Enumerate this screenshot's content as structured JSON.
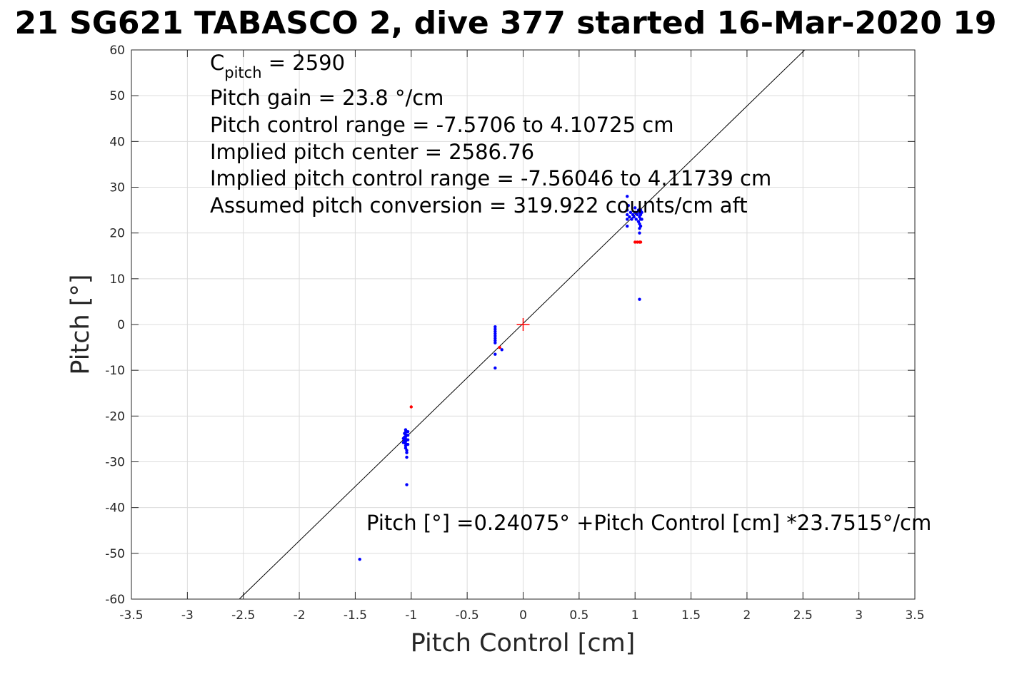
{
  "chart_data": {
    "type": "scatter",
    "title": "21 SG621 TABASCO 2, dive 377 started 16-Mar-2020 19",
    "xlabel": "Pitch Control [cm]",
    "ylabel": "Pitch [°]",
    "xlim": [
      -3.5,
      3.5
    ],
    "ylim": [
      -60,
      60
    ],
    "xticks": [
      "-3.5",
      "-3",
      "-2.5",
      "-2",
      "-1.5",
      "-1",
      "-0.5",
      "0",
      "0.5",
      "1",
      "1.5",
      "2",
      "2.5",
      "3",
      "3.5"
    ],
    "yticks": [
      "60",
      "50",
      "40",
      "30",
      "20",
      "10",
      "0",
      "-10",
      "-20",
      "-30",
      "-40",
      "-50",
      "-60"
    ],
    "grid": true,
    "annotations": {
      "c_pitch_main": "C",
      "c_pitch_sub": "pitch",
      "c_pitch_value": " = 2590",
      "pitch_gain": "Pitch gain = 23.8 °/cm",
      "control_range": "Pitch control range = -7.5706 to 4.10725 cm",
      "implied_center": "Implied pitch center = 2586.76",
      "implied_range": "Implied pitch control range = -7.56046 to 4.11739 cm",
      "conversion": "Assumed pitch conversion = 319.922 counts/cm aft",
      "fit_equation": "Pitch [°] =0.24075° +Pitch Control [cm] *23.7515°/cm"
    },
    "fit_line": {
      "intercept": 0.24075,
      "slope": 23.7515,
      "color": "#000000"
    },
    "center_marker": {
      "x": 0,
      "y": 0,
      "color": "#ff0000"
    },
    "series": [
      {
        "color": "#0000ff",
        "points": [
          [
            -1.05,
            -23.0
          ],
          [
            -1.05,
            -23.5
          ],
          [
            -1.05,
            -24.0
          ],
          [
            -1.05,
            -24.5
          ],
          [
            -1.05,
            -25.0
          ],
          [
            -1.05,
            -25.5
          ],
          [
            -1.05,
            -26.0
          ],
          [
            -1.05,
            -26.5
          ],
          [
            -1.05,
            -27.0
          ],
          [
            -1.04,
            -27.5
          ],
          [
            -1.04,
            -28.0
          ],
          [
            -1.06,
            -23.8
          ],
          [
            -1.06,
            -24.6
          ],
          [
            -1.06,
            -25.4
          ],
          [
            -1.03,
            -23.4
          ],
          [
            -1.03,
            -24.2
          ],
          [
            -1.03,
            -25.2
          ],
          [
            -1.03,
            -26.2
          ],
          [
            -1.07,
            -25.8
          ],
          [
            -1.07,
            -24.9
          ],
          [
            -1.04,
            -29.0
          ],
          [
            -1.04,
            -35.0
          ],
          [
            -1.46,
            -51.3
          ],
          [
            -0.25,
            -0.5
          ],
          [
            -0.25,
            -1.0
          ],
          [
            -0.25,
            -1.5
          ],
          [
            -0.25,
            -2.0
          ],
          [
            -0.25,
            -2.5
          ],
          [
            -0.25,
            -3.0
          ],
          [
            -0.25,
            -3.5
          ],
          [
            -0.25,
            -4.0
          ],
          [
            -0.25,
            -6.5
          ],
          [
            -0.25,
            -9.5
          ],
          [
            -0.19,
            -5.5
          ],
          [
            0.93,
            23.0
          ],
          [
            0.93,
            24.0
          ],
          [
            0.93,
            25.0
          ],
          [
            0.93,
            28.0
          ],
          [
            0.93,
            21.5
          ],
          [
            0.94,
            26.0
          ],
          [
            0.95,
            23.5
          ],
          [
            0.96,
            24.5
          ],
          [
            0.97,
            23.0
          ],
          [
            0.98,
            24.0
          ],
          [
            0.99,
            23.5
          ],
          [
            1.0,
            24.5
          ],
          [
            1.0,
            25.5
          ],
          [
            1.01,
            23.0
          ],
          [
            1.02,
            24.0
          ],
          [
            1.03,
            25.0
          ],
          [
            1.03,
            22.5
          ],
          [
            1.04,
            24.5
          ],
          [
            1.04,
            23.5
          ],
          [
            1.04,
            22.0
          ],
          [
            1.04,
            21.0
          ],
          [
            1.04,
            20.0
          ],
          [
            1.05,
            24.0
          ],
          [
            1.05,
            25.0
          ],
          [
            1.05,
            23.0
          ],
          [
            1.05,
            21.5
          ],
          [
            1.06,
            24.5
          ],
          [
            1.06,
            23.0
          ],
          [
            1.04,
            5.5
          ]
        ]
      },
      {
        "color": "#ff0000",
        "points": [
          [
            -1.0,
            -18.0
          ],
          [
            -0.21,
            -5.0
          ],
          [
            1.0,
            18.0
          ],
          [
            1.02,
            18.0
          ],
          [
            1.04,
            18.0
          ],
          [
            1.05,
            18.0
          ]
        ]
      }
    ]
  }
}
